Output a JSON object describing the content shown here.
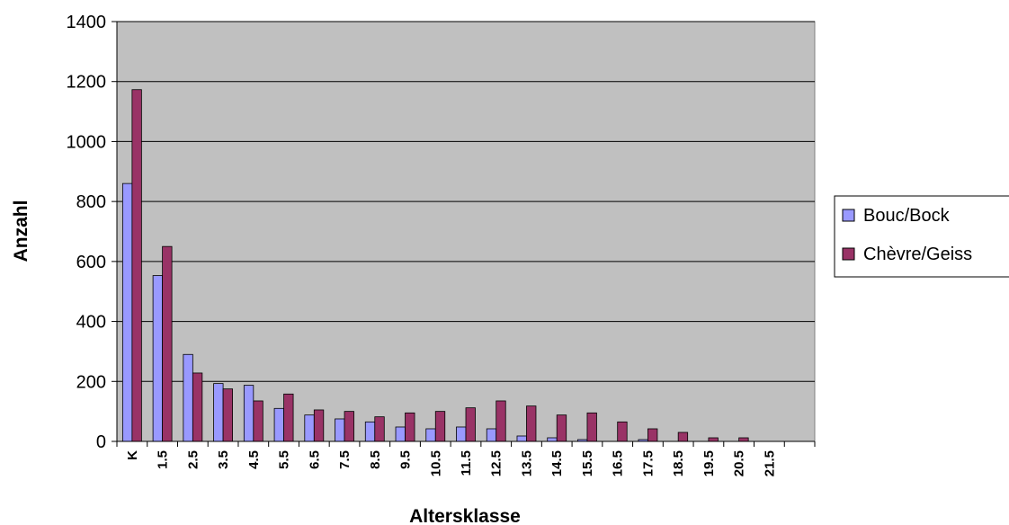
{
  "chart_data": {
    "type": "bar",
    "xlabel": "Altersklasse",
    "ylabel": "Anzahl",
    "ylim": [
      0,
      1400
    ],
    "yticks": [
      0,
      200,
      400,
      600,
      800,
      1000,
      1200,
      1400
    ],
    "grid": true,
    "legend_position": "right",
    "plot_background": "#C0C0C0",
    "categories": [
      "K",
      "1.5",
      "2.5",
      "3.5",
      "4.5",
      "5.5",
      "6.5",
      "7.5",
      "8.5",
      "9.5",
      "10.5",
      "11.5",
      "12.5",
      "13.5",
      "14.5",
      "15.5",
      "16.5",
      "17.5",
      "18.5",
      "19.5",
      "20.5",
      "21.5",
      ""
    ],
    "series": [
      {
        "name": "Bouc/Bock",
        "color": "#9999FF",
        "values": [
          860,
          553,
          290,
          193,
          187,
          110,
          88,
          75,
          65,
          48,
          42,
          48,
          42,
          18,
          12,
          6,
          0,
          6,
          0,
          0,
          0,
          0,
          0
        ]
      },
      {
        "name": "Chèvre/Geiss",
        "color": "#993366",
        "values": [
          1173,
          650,
          228,
          175,
          135,
          158,
          105,
          100,
          82,
          95,
          100,
          112,
          135,
          118,
          88,
          95,
          65,
          42,
          30,
          12,
          12,
          0,
          0
        ]
      }
    ]
  }
}
